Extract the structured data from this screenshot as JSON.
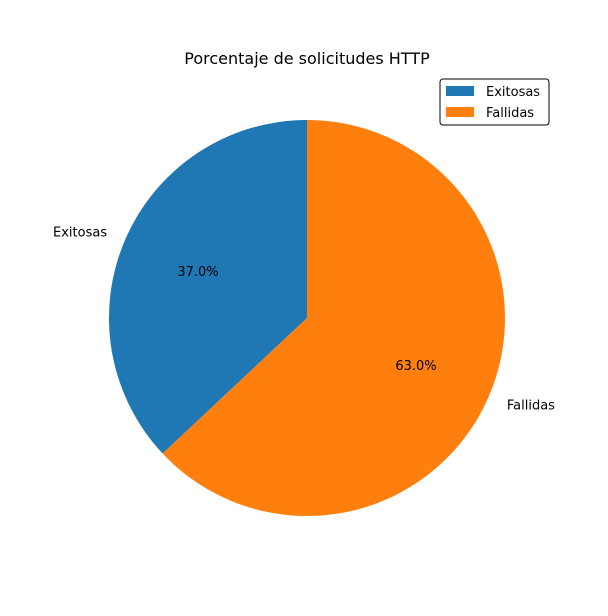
{
  "chart_data": {
    "type": "pie",
    "title": "Porcentaje de solicitudes HTTP",
    "categories": [
      "Exitosas",
      "Fallidas"
    ],
    "values": [
      37.0,
      63.0
    ],
    "value_labels": [
      "37.0%",
      "63.0%"
    ],
    "colors": [
      "#1f77b4",
      "#ff7f0e"
    ],
    "start_angle_deg": 90,
    "direction": "counterclockwise",
    "legend": {
      "placement": "top-right",
      "entries": [
        "Exitosas",
        "Fallidas"
      ]
    }
  }
}
